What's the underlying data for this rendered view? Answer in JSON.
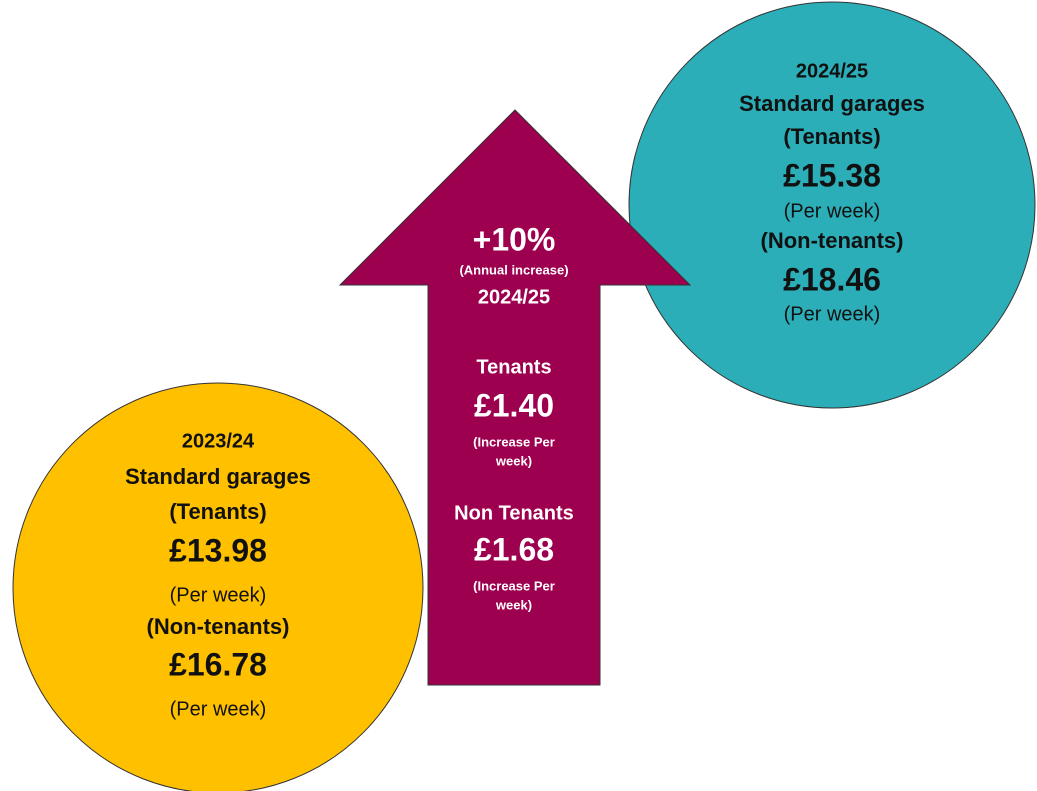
{
  "left_circle": {
    "period": "2023/24",
    "title": "Standard garages",
    "tenants_label": "(Tenants)",
    "tenants_price": "£13.98",
    "tenants_unit": "(Per week)",
    "non_tenants_label": "(Non-tenants)",
    "non_tenants_price": "£16.78",
    "non_tenants_unit": "(Per week)"
  },
  "right_circle": {
    "period": "2024/25",
    "title": "Standard garages",
    "tenants_label": "(Tenants)",
    "tenants_price": "£15.38",
    "tenants_unit": "(Per week)",
    "non_tenants_label": "(Non-tenants)",
    "non_tenants_price": "£18.46",
    "non_tenants_unit": "(Per week)"
  },
  "arrow": {
    "percent": "+10%",
    "percent_note": "(Annual increase)",
    "period": "2024/25",
    "tenants_label": "Tenants",
    "tenants_increase": "£1.40",
    "tenants_note": [
      "(Increase Per",
      "week)"
    ],
    "non_tenants_label": "Non Tenants",
    "non_tenants_increase": "£1.68",
    "non_tenants_note": [
      "(Increase Per",
      "week)"
    ]
  }
}
